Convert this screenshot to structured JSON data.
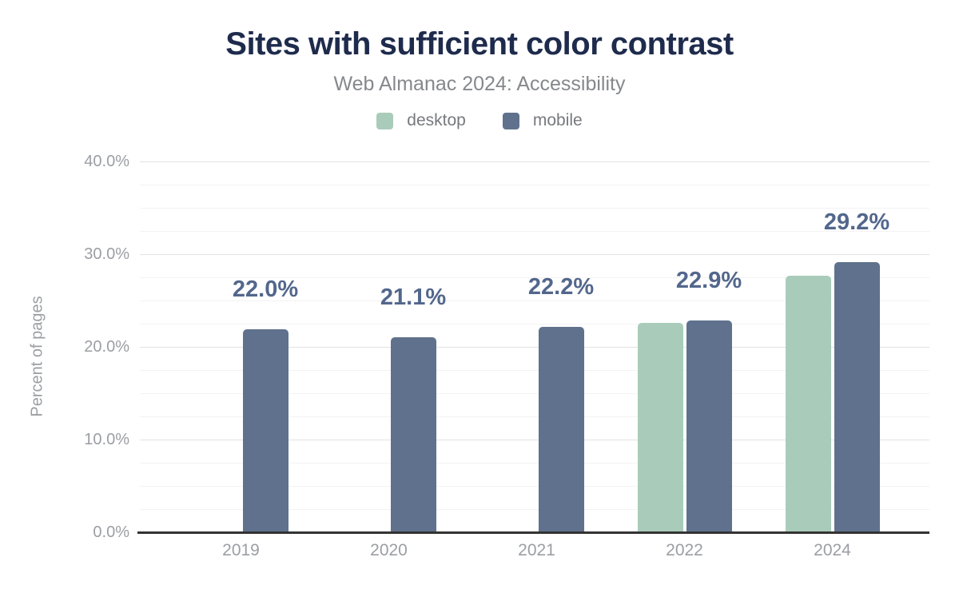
{
  "header": {
    "title": "Sites with sufficient color contrast",
    "subtitle": "Web Almanac 2024: Accessibility"
  },
  "legend": {
    "items": [
      {
        "label": "desktop",
        "color": "#a9ccba"
      },
      {
        "label": "mobile",
        "color": "#5f718c"
      }
    ]
  },
  "chart_data": {
    "type": "bar",
    "title": "Sites with sufficient color contrast",
    "subtitle": "Web Almanac 2024: Accessibility",
    "ylabel": "Percent of pages",
    "xlabel": "",
    "categories": [
      "2019",
      "2020",
      "2021",
      "2022",
      "2024"
    ],
    "series": [
      {
        "name": "desktop",
        "color": "#a9ccba",
        "values": [
          null,
          null,
          null,
          22.7,
          27.8
        ]
      },
      {
        "name": "mobile",
        "color": "#5f718c",
        "values": [
          22.0,
          21.1,
          22.2,
          22.9,
          29.2
        ]
      }
    ],
    "bar_labels": [
      "22.0%",
      "21.1%",
      "22.2%",
      "22.9%",
      "29.2%"
    ],
    "ylim": [
      0,
      40
    ],
    "yticks": [
      {
        "value": 0,
        "label": "0.0%"
      },
      {
        "value": 10,
        "label": "10.0%"
      },
      {
        "value": 20,
        "label": "20.0%"
      },
      {
        "value": 30,
        "label": "30.0%"
      },
      {
        "value": 40,
        "label": "40.0%"
      }
    ],
    "grid": {
      "orientation": "horizontal",
      "major_step": 10,
      "minor_step": 2.5
    },
    "legend_position": "top"
  },
  "colors": {
    "title": "#1e2b4c",
    "subtitle": "#85888c",
    "axis_text": "#9b9ea3",
    "data_label": "#53678c",
    "axis_line": "#333333",
    "grid_major": "#e2e2e2",
    "grid_minor": "#f3f3f3",
    "desktop": "#a9ccba",
    "mobile": "#5f718c",
    "background": "#ffffff"
  }
}
